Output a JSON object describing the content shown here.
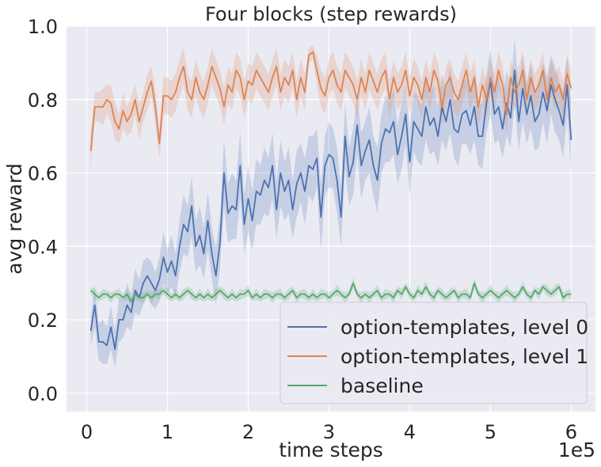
{
  "chart_data": {
    "type": "line",
    "title": "Four blocks (step rewards)",
    "xlabel": "time steps",
    "ylabel": "avg reward",
    "x_multiplier_label": "1e5",
    "x_ticks": [
      0,
      1,
      2,
      3,
      4,
      5,
      6
    ],
    "y_ticks": [
      0.0,
      0.2,
      0.4,
      0.6,
      0.8,
      1.0
    ],
    "y_tick_labels": [
      "0.0",
      "0.2",
      "0.4",
      "0.6",
      "0.8",
      "1.0"
    ],
    "xlim": [
      -0.25,
      6.3
    ],
    "ylim": [
      -0.05,
      1.0
    ],
    "grid": true,
    "background": "#eaeaf2",
    "legend_position": "lower-right",
    "series": [
      {
        "name": "option-templates, level 0",
        "color": "#4c72b0",
        "x": [
          0.05,
          0.1,
          0.15,
          0.2,
          0.25,
          0.3,
          0.35,
          0.4,
          0.45,
          0.5,
          0.55,
          0.6,
          0.65,
          0.7,
          0.75,
          0.8,
          0.85,
          0.9,
          0.95,
          1.0,
          1.05,
          1.1,
          1.15,
          1.2,
          1.25,
          1.3,
          1.35,
          1.4,
          1.45,
          1.5,
          1.55,
          1.6,
          1.65,
          1.7,
          1.75,
          1.8,
          1.85,
          1.9,
          1.95,
          2.0,
          2.05,
          2.1,
          2.15,
          2.2,
          2.25,
          2.3,
          2.35,
          2.4,
          2.45,
          2.5,
          2.55,
          2.6,
          2.65,
          2.7,
          2.75,
          2.8,
          2.85,
          2.9,
          2.95,
          3.0,
          3.05,
          3.1,
          3.15,
          3.2,
          3.25,
          3.3,
          3.35,
          3.4,
          3.45,
          3.5,
          3.55,
          3.6,
          3.65,
          3.7,
          3.75,
          3.8,
          3.85,
          3.9,
          3.95,
          4.0,
          4.05,
          4.1,
          4.15,
          4.2,
          4.25,
          4.3,
          4.35,
          4.4,
          4.45,
          4.5,
          4.55,
          4.6,
          4.65,
          4.7,
          4.75,
          4.8,
          4.85,
          4.9,
          4.95,
          5.0,
          5.05,
          5.1,
          5.15,
          5.2,
          5.25,
          5.3,
          5.35,
          5.4,
          5.45,
          5.5,
          5.55,
          5.6,
          5.65,
          5.7,
          5.75,
          5.8,
          5.85,
          5.9,
          5.95,
          6.0
        ],
        "values": [
          0.17,
          0.24,
          0.14,
          0.14,
          0.13,
          0.18,
          0.12,
          0.2,
          0.2,
          0.24,
          0.22,
          0.28,
          0.26,
          0.3,
          0.32,
          0.3,
          0.28,
          0.31,
          0.37,
          0.33,
          0.36,
          0.32,
          0.4,
          0.46,
          0.44,
          0.51,
          0.4,
          0.43,
          0.38,
          0.47,
          0.38,
          0.32,
          0.41,
          0.6,
          0.49,
          0.51,
          0.5,
          0.62,
          0.46,
          0.53,
          0.47,
          0.55,
          0.54,
          0.58,
          0.56,
          0.62,
          0.5,
          0.6,
          0.55,
          0.58,
          0.5,
          0.57,
          0.6,
          0.55,
          0.62,
          0.61,
          0.64,
          0.48,
          0.62,
          0.65,
          0.64,
          0.58,
          0.48,
          0.7,
          0.59,
          0.63,
          0.73,
          0.62,
          0.66,
          0.69,
          0.62,
          0.58,
          0.68,
          0.72,
          0.71,
          0.74,
          0.65,
          0.7,
          0.76,
          0.63,
          0.74,
          0.72,
          0.7,
          0.78,
          0.73,
          0.75,
          0.7,
          0.78,
          0.74,
          0.8,
          0.72,
          0.71,
          0.76,
          0.77,
          0.73,
          0.78,
          0.7,
          0.7,
          0.79,
          0.85,
          0.76,
          0.78,
          0.72,
          0.79,
          0.75,
          0.88,
          0.74,
          0.83,
          0.76,
          0.81,
          0.74,
          0.76,
          0.82,
          0.77,
          0.84,
          0.8,
          0.77,
          0.73,
          0.84,
          0.69
        ],
        "band": [
          0.04,
          0.06,
          0.05,
          0.06,
          0.05,
          0.06,
          0.05,
          0.06,
          0.05,
          0.06,
          0.05,
          0.06,
          0.05,
          0.06,
          0.05,
          0.06,
          0.05,
          0.06,
          0.07,
          0.06,
          0.07,
          0.06,
          0.07,
          0.08,
          0.07,
          0.08,
          0.07,
          0.08,
          0.07,
          0.08,
          0.07,
          0.08,
          0.07,
          0.09,
          0.08,
          0.09,
          0.08,
          0.09,
          0.08,
          0.09,
          0.08,
          0.09,
          0.08,
          0.09,
          0.08,
          0.09,
          0.08,
          0.09,
          0.08,
          0.09,
          0.08,
          0.09,
          0.08,
          0.09,
          0.08,
          0.09,
          0.08,
          0.09,
          0.08,
          0.09,
          0.08,
          0.09,
          0.08,
          0.09,
          0.08,
          0.09,
          0.08,
          0.09,
          0.08,
          0.09,
          0.08,
          0.09,
          0.08,
          0.09,
          0.08,
          0.09,
          0.08,
          0.09,
          0.08,
          0.09,
          0.08,
          0.09,
          0.08,
          0.09,
          0.08,
          0.09,
          0.08,
          0.09,
          0.08,
          0.09,
          0.08,
          0.09,
          0.08,
          0.09,
          0.08,
          0.09,
          0.08,
          0.09,
          0.08,
          0.09,
          0.08,
          0.09,
          0.08,
          0.09,
          0.08,
          0.09,
          0.08,
          0.09,
          0.08,
          0.09,
          0.08,
          0.09,
          0.08,
          0.09,
          0.08,
          0.09,
          0.08,
          0.09,
          0.08,
          0.09
        ]
      },
      {
        "name": "option-templates, level 1",
        "color": "#dd8452",
        "x": [
          0.05,
          0.1,
          0.15,
          0.2,
          0.25,
          0.3,
          0.35,
          0.4,
          0.45,
          0.5,
          0.55,
          0.6,
          0.65,
          0.7,
          0.75,
          0.8,
          0.85,
          0.9,
          0.95,
          1.0,
          1.05,
          1.1,
          1.15,
          1.2,
          1.25,
          1.3,
          1.35,
          1.4,
          1.45,
          1.5,
          1.55,
          1.6,
          1.65,
          1.7,
          1.75,
          1.8,
          1.85,
          1.9,
          1.95,
          2.0,
          2.05,
          2.1,
          2.15,
          2.2,
          2.25,
          2.3,
          2.35,
          2.4,
          2.45,
          2.5,
          2.55,
          2.6,
          2.65,
          2.7,
          2.75,
          2.8,
          2.85,
          2.9,
          2.95,
          3.0,
          3.05,
          3.1,
          3.15,
          3.2,
          3.25,
          3.3,
          3.35,
          3.4,
          3.45,
          3.5,
          3.55,
          3.6,
          3.65,
          3.7,
          3.75,
          3.8,
          3.85,
          3.9,
          3.95,
          4.0,
          4.05,
          4.1,
          4.15,
          4.2,
          4.25,
          4.3,
          4.35,
          4.4,
          4.45,
          4.5,
          4.55,
          4.6,
          4.65,
          4.7,
          4.75,
          4.8,
          4.85,
          4.9,
          4.95,
          5.0,
          5.05,
          5.1,
          5.15,
          5.2,
          5.25,
          5.3,
          5.35,
          5.4,
          5.45,
          5.5,
          5.55,
          5.6,
          5.65,
          5.7,
          5.75,
          5.8,
          5.85,
          5.9,
          5.95,
          6.0
        ],
        "values": [
          0.66,
          0.78,
          0.78,
          0.78,
          0.8,
          0.79,
          0.74,
          0.72,
          0.77,
          0.74,
          0.76,
          0.8,
          0.74,
          0.78,
          0.82,
          0.85,
          0.78,
          0.68,
          0.81,
          0.81,
          0.8,
          0.82,
          0.86,
          0.89,
          0.82,
          0.8,
          0.86,
          0.82,
          0.8,
          0.84,
          0.89,
          0.86,
          0.83,
          0.78,
          0.84,
          0.82,
          0.88,
          0.86,
          0.8,
          0.85,
          0.84,
          0.88,
          0.86,
          0.84,
          0.82,
          0.86,
          0.89,
          0.82,
          0.86,
          0.84,
          0.88,
          0.8,
          0.86,
          0.82,
          0.92,
          0.93,
          0.88,
          0.83,
          0.81,
          0.86,
          0.88,
          0.84,
          0.82,
          0.88,
          0.86,
          0.84,
          0.8,
          0.86,
          0.82,
          0.88,
          0.85,
          0.82,
          0.86,
          0.88,
          0.8,
          0.86,
          0.82,
          0.84,
          0.88,
          0.81,
          0.86,
          0.84,
          0.8,
          0.86,
          0.82,
          0.88,
          0.85,
          0.78,
          0.84,
          0.86,
          0.82,
          0.8,
          0.84,
          0.88,
          0.82,
          0.86,
          0.78,
          0.84,
          0.8,
          0.86,
          0.82,
          0.88,
          0.84,
          0.76,
          0.86,
          0.82,
          0.84,
          0.88,
          0.8,
          0.86,
          0.82,
          0.84,
          0.88,
          0.8,
          0.86,
          0.82,
          0.84,
          0.8,
          0.87,
          0.83
        ],
        "band": [
          0.05,
          0.04,
          0.04,
          0.05,
          0.04,
          0.05,
          0.05,
          0.04,
          0.05,
          0.04,
          0.05,
          0.04,
          0.05,
          0.04,
          0.05,
          0.04,
          0.05,
          0.04,
          0.05,
          0.05,
          0.05,
          0.05,
          0.05,
          0.05,
          0.05,
          0.05,
          0.05,
          0.05,
          0.05,
          0.05,
          0.05,
          0.05,
          0.05,
          0.05,
          0.05,
          0.05,
          0.05,
          0.05,
          0.05,
          0.05,
          0.05,
          0.05,
          0.05,
          0.05,
          0.05,
          0.05,
          0.05,
          0.05,
          0.05,
          0.05,
          0.05,
          0.05,
          0.05,
          0.05,
          0.02,
          0.02,
          0.04,
          0.05,
          0.05,
          0.05,
          0.05,
          0.05,
          0.05,
          0.05,
          0.05,
          0.05,
          0.05,
          0.05,
          0.05,
          0.05,
          0.05,
          0.05,
          0.05,
          0.05,
          0.05,
          0.05,
          0.05,
          0.05,
          0.05,
          0.05,
          0.05,
          0.05,
          0.05,
          0.05,
          0.05,
          0.05,
          0.05,
          0.05,
          0.05,
          0.05,
          0.05,
          0.05,
          0.05,
          0.05,
          0.05,
          0.05,
          0.05,
          0.05,
          0.05,
          0.05,
          0.05,
          0.05,
          0.05,
          0.05,
          0.05,
          0.05,
          0.05,
          0.05,
          0.05,
          0.05,
          0.05,
          0.05,
          0.05,
          0.05,
          0.05,
          0.05,
          0.05,
          0.05,
          0.05,
          0.05
        ]
      },
      {
        "name": "baseline",
        "color": "#55a868",
        "x": [
          0.05,
          0.1,
          0.15,
          0.2,
          0.25,
          0.3,
          0.35,
          0.4,
          0.45,
          0.5,
          0.55,
          0.6,
          0.65,
          0.7,
          0.75,
          0.8,
          0.85,
          0.9,
          0.95,
          1.0,
          1.05,
          1.1,
          1.15,
          1.2,
          1.25,
          1.3,
          1.35,
          1.4,
          1.45,
          1.5,
          1.55,
          1.6,
          1.65,
          1.7,
          1.75,
          1.8,
          1.85,
          1.9,
          1.95,
          2.0,
          2.05,
          2.1,
          2.15,
          2.2,
          2.25,
          2.3,
          2.35,
          2.4,
          2.45,
          2.5,
          2.55,
          2.6,
          2.65,
          2.7,
          2.75,
          2.8,
          2.85,
          2.9,
          2.95,
          3.0,
          3.05,
          3.1,
          3.15,
          3.2,
          3.25,
          3.3,
          3.35,
          3.4,
          3.45,
          3.5,
          3.55,
          3.6,
          3.65,
          3.7,
          3.75,
          3.8,
          3.85,
          3.9,
          3.95,
          4.0,
          4.05,
          4.1,
          4.15,
          4.2,
          4.25,
          4.3,
          4.35,
          4.4,
          4.45,
          4.5,
          4.55,
          4.6,
          4.65,
          4.7,
          4.75,
          4.8,
          4.85,
          4.9,
          4.95,
          5.0,
          5.05,
          5.1,
          5.15,
          5.2,
          5.25,
          5.3,
          5.35,
          5.4,
          5.45,
          5.5,
          5.55,
          5.6,
          5.65,
          5.7,
          5.75,
          5.8,
          5.85,
          5.9,
          5.95,
          6.0
        ],
        "values": [
          0.28,
          0.27,
          0.26,
          0.27,
          0.27,
          0.26,
          0.27,
          0.27,
          0.26,
          0.27,
          0.25,
          0.27,
          0.26,
          0.26,
          0.27,
          0.26,
          0.27,
          0.27,
          0.28,
          0.27,
          0.26,
          0.27,
          0.26,
          0.27,
          0.28,
          0.27,
          0.26,
          0.27,
          0.26,
          0.27,
          0.26,
          0.27,
          0.28,
          0.27,
          0.26,
          0.27,
          0.26,
          0.27,
          0.27,
          0.28,
          0.26,
          0.27,
          0.26,
          0.27,
          0.27,
          0.26,
          0.27,
          0.27,
          0.26,
          0.27,
          0.28,
          0.26,
          0.27,
          0.27,
          0.26,
          0.27,
          0.26,
          0.27,
          0.27,
          0.26,
          0.27,
          0.28,
          0.27,
          0.26,
          0.27,
          0.3,
          0.27,
          0.26,
          0.27,
          0.26,
          0.27,
          0.28,
          0.26,
          0.27,
          0.27,
          0.26,
          0.28,
          0.27,
          0.29,
          0.27,
          0.26,
          0.28,
          0.27,
          0.29,
          0.27,
          0.26,
          0.28,
          0.27,
          0.26,
          0.27,
          0.28,
          0.26,
          0.27,
          0.27,
          0.26,
          0.3,
          0.27,
          0.26,
          0.27,
          0.28,
          0.27,
          0.26,
          0.27,
          0.28,
          0.27,
          0.26,
          0.27,
          0.29,
          0.27,
          0.26,
          0.28,
          0.27,
          0.29,
          0.28,
          0.27,
          0.28,
          0.29,
          0.26,
          0.27,
          0.27
        ],
        "band": [
          0.01,
          0.015,
          0.01,
          0.015,
          0.01,
          0.015,
          0.01,
          0.015,
          0.01,
          0.015,
          0.01,
          0.015,
          0.01,
          0.015,
          0.01,
          0.015,
          0.01,
          0.015,
          0.01,
          0.015,
          0.01,
          0.015,
          0.01,
          0.015,
          0.01,
          0.015,
          0.01,
          0.015,
          0.01,
          0.015,
          0.01,
          0.015,
          0.01,
          0.015,
          0.01,
          0.015,
          0.01,
          0.015,
          0.01,
          0.015,
          0.01,
          0.015,
          0.01,
          0.015,
          0.01,
          0.015,
          0.01,
          0.015,
          0.01,
          0.015,
          0.01,
          0.015,
          0.01,
          0.015,
          0.01,
          0.015,
          0.01,
          0.015,
          0.01,
          0.015,
          0.01,
          0.015,
          0.01,
          0.015,
          0.01,
          0.015,
          0.01,
          0.015,
          0.01,
          0.015,
          0.01,
          0.015,
          0.01,
          0.015,
          0.01,
          0.015,
          0.01,
          0.015,
          0.01,
          0.015,
          0.01,
          0.015,
          0.01,
          0.015,
          0.01,
          0.015,
          0.01,
          0.015,
          0.01,
          0.015,
          0.01,
          0.015,
          0.01,
          0.015,
          0.01,
          0.015,
          0.01,
          0.015,
          0.01,
          0.015,
          0.01,
          0.015,
          0.01,
          0.015,
          0.01,
          0.015,
          0.01,
          0.015,
          0.01,
          0.015,
          0.01,
          0.015,
          0.01,
          0.015,
          0.01,
          0.015,
          0.01,
          0.015,
          0.01,
          0.015
        ]
      }
    ]
  }
}
